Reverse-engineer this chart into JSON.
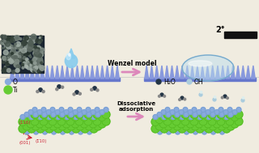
{
  "bg_color": "#f0ece0",
  "wenzel_text": "Wenzel model",
  "dissociative_text": "Dissociative\nadsorption",
  "angle_text": "2°",
  "legend_O": "O",
  "legend_Ti": "Ti",
  "legend_H2O": "H₂O",
  "legend_OH": "OH",
  "arrow_color": "#dd88bb",
  "spike_color": "#8899dd",
  "spike_base_color": "#6677cc",
  "Ti_color": "#66cc33",
  "Ti_edge": "#44aa11",
  "O_color": "#88aadd",
  "O_edge": "#5588bb",
  "H2O_O_color": "#223344",
  "H2O_H_color": "#888888",
  "OH_O_color": "#aaccdd",
  "OH_H_color": "#ddeeee",
  "water_drop_main": "#88ccee",
  "water_drop_light": "#cceeff",
  "water_drop_highlight": "#eef8ff",
  "bubble_fill": "#bbddee",
  "bubble_edge": "#77aacc",
  "black_bar_color": "#111111",
  "axis_color": "#cc2233",
  "img_bg": "#1a2530"
}
